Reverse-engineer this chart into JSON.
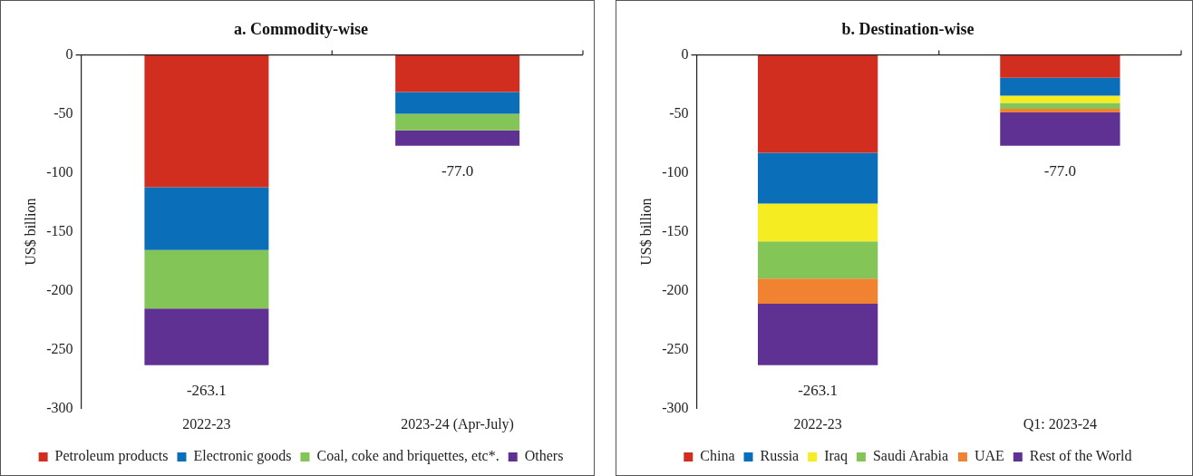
{
  "chart_data": [
    {
      "type": "bar",
      "title": "a. Commodity-wise",
      "ylabel": "US$ billion",
      "categories": [
        "2022-23",
        "2023-24 (Apr-July)"
      ],
      "stacked": true,
      "ylim": [
        -300,
        0
      ],
      "yticks": [
        -300,
        -250,
        -200,
        -150,
        -100,
        -50,
        0
      ],
      "legend": "bottom",
      "totals": [
        "-263.1",
        "-77.0"
      ],
      "series": [
        {
          "name": "Petroleum products",
          "color": "#d22e1f",
          "values": [
            -112.2,
            -31.5
          ]
        },
        {
          "name": "Electronic goods",
          "color": "#0b6eb8",
          "values": [
            -53.3,
            -18.4
          ]
        },
        {
          "name": "Coal, coke and briquettes, etc*.",
          "color": "#84c557",
          "values": [
            -49.6,
            -14.1
          ]
        },
        {
          "name": "Others",
          "color": "#5e3193",
          "values": [
            -48.0,
            -13.0
          ]
        }
      ]
    },
    {
      "type": "bar",
      "title": "b. Destination-wise",
      "ylabel": "US$ billion",
      "categories": [
        "2022-23",
        "Q1: 2023-24"
      ],
      "stacked": true,
      "ylim": [
        -300,
        0
      ],
      "yticks": [
        -300,
        -250,
        -200,
        -150,
        -100,
        -50,
        0
      ],
      "legend": "bottom",
      "totals": [
        "-263.1",
        "-77.0"
      ],
      "series": [
        {
          "name": "China",
          "color": "#d22e1f",
          "values": [
            -82.9,
            -19.4
          ]
        },
        {
          "name": "Russia",
          "color": "#0b6eb8",
          "values": [
            -43.2,
            -15.1
          ]
        },
        {
          "name": "Iraq",
          "color": "#f6ec22",
          "values": [
            -32.1,
            -6.2
          ]
        },
        {
          "name": "Saudi Arabia",
          "color": "#84c557",
          "values": [
            -31.4,
            -4.9
          ]
        },
        {
          "name": "UAE",
          "color": "#f08232",
          "values": [
            -21.3,
            -3.1
          ]
        },
        {
          "name": "Rest of the World",
          "color": "#5e3193",
          "values": [
            -52.2,
            -28.3
          ]
        }
      ]
    }
  ]
}
